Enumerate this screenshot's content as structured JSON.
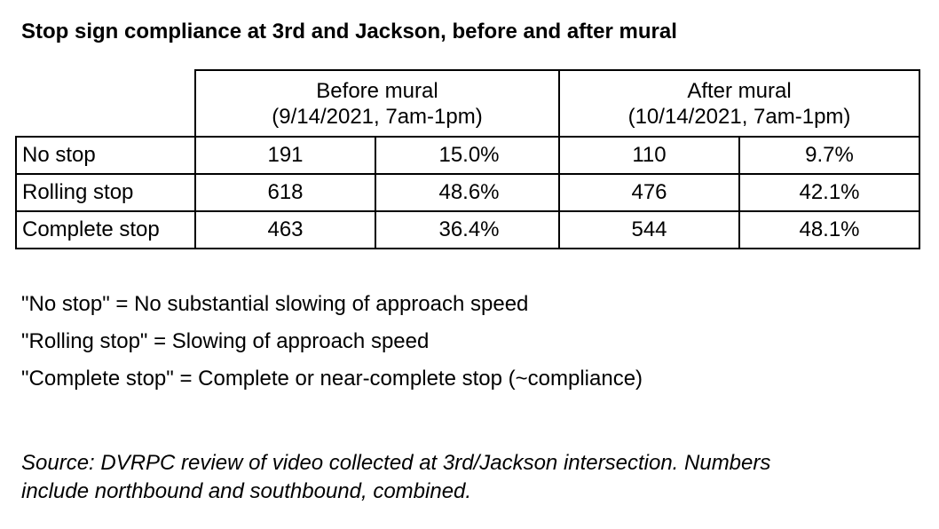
{
  "title": "Stop sign compliance at 3rd and Jackson, before and after mural",
  "table": {
    "before": {
      "label": "Before mural",
      "period": "(9/14/2021, 7am-1pm)"
    },
    "after": {
      "label": "After mural",
      "period": "(10/14/2021, 7am-1pm)"
    },
    "rows": [
      {
        "label": "No stop",
        "before_count": "191",
        "before_pct": "15.0%",
        "after_count": "110",
        "after_pct": "9.7%"
      },
      {
        "label": "Rolling stop",
        "before_count": "618",
        "before_pct": "48.6%",
        "after_count": "476",
        "after_pct": "42.1%"
      },
      {
        "label": "Complete stop",
        "before_count": "463",
        "before_pct": "36.4%",
        "after_count": "544",
        "after_pct": "48.1%"
      }
    ]
  },
  "notes": [
    "\"No stop\" = No substantial slowing of approach speed",
    "\"Rolling stop\" = Slowing of approach speed",
    "\"Complete stop\" = Complete or near-complete stop (~compliance)"
  ],
  "source": {
    "line1": "Source: DVRPC review of video collected at 3rd/Jackson intersection. Numbers",
    "line2": "include northbound and southbound, combined."
  }
}
